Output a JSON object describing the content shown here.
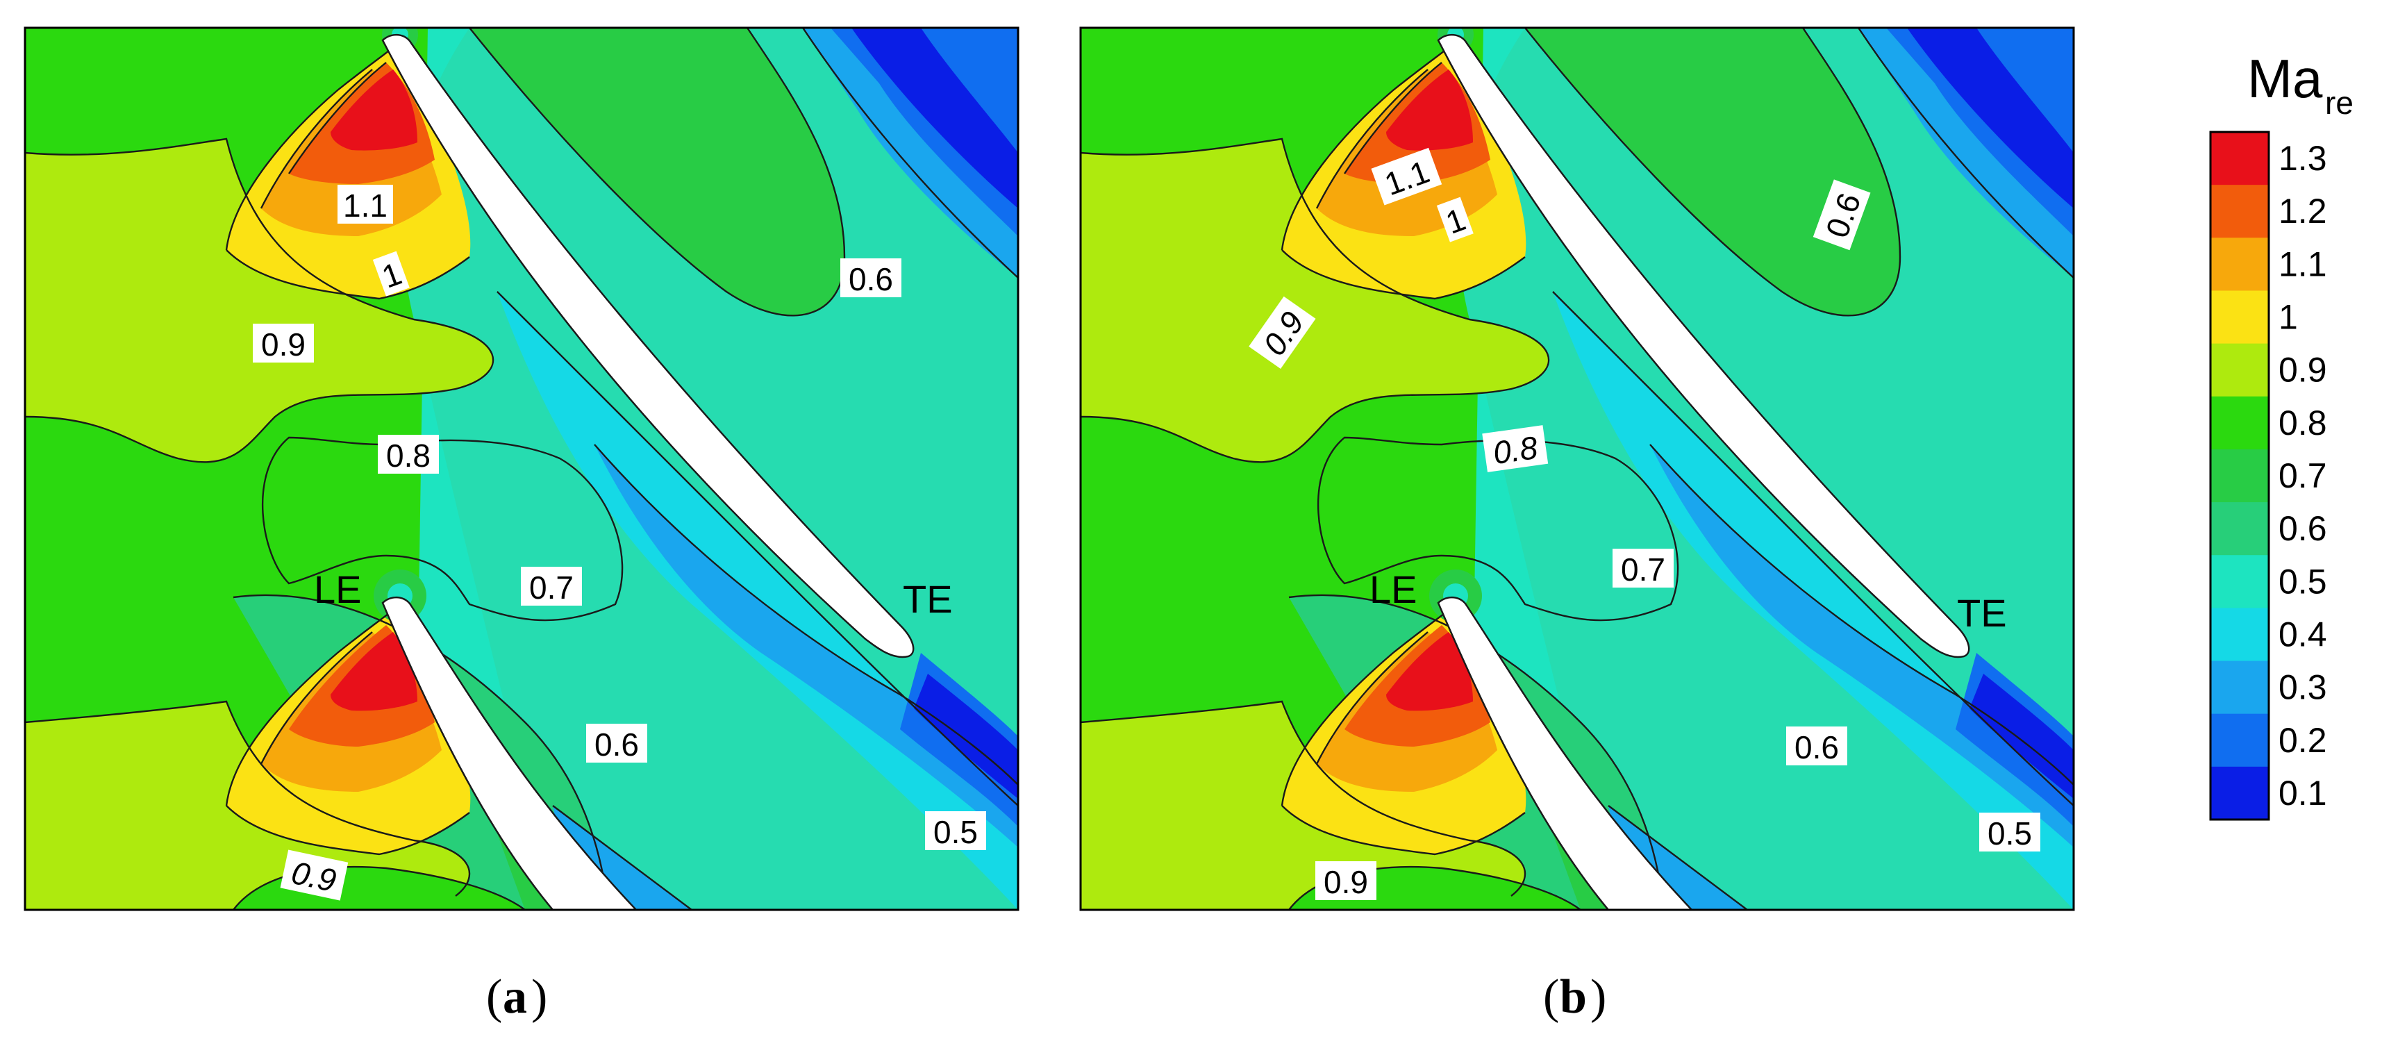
{
  "colorbar": {
    "title": "Ma",
    "title_sub": "re",
    "ticks": [
      "1.3",
      "1.2",
      "1.1",
      "1",
      "0.9",
      "0.8",
      "0.7",
      "0.6",
      "0.5",
      "0.4",
      "0.3",
      "0.2",
      "0.1"
    ],
    "colors": [
      "#e8101a",
      "#f25c0c",
      "#f7a80c",
      "#fbe214",
      "#aeea0e",
      "#2bd90f",
      "#28cc45",
      "#27cf79",
      "#1de4c0",
      "#15d9e6",
      "#1aa6ee",
      "#106ef0",
      "#0a1ee6"
    ]
  },
  "panels": [
    {
      "caption_letter": "a",
      "leading_edge": "LE",
      "trailing_edge": "TE",
      "contour_labels": [
        "1.1",
        "1",
        "0.9",
        "0.8",
        "0.7",
        "0.6",
        "0.6",
        "0.5",
        "0.9"
      ]
    },
    {
      "caption_letter": "b",
      "leading_edge": "LE",
      "trailing_edge": "TE",
      "contour_labels": [
        "1.1",
        "1",
        "0.6",
        "0.9",
        "0.8",
        "0.7",
        "0.6",
        "0.5",
        "0.9"
      ]
    }
  ]
}
